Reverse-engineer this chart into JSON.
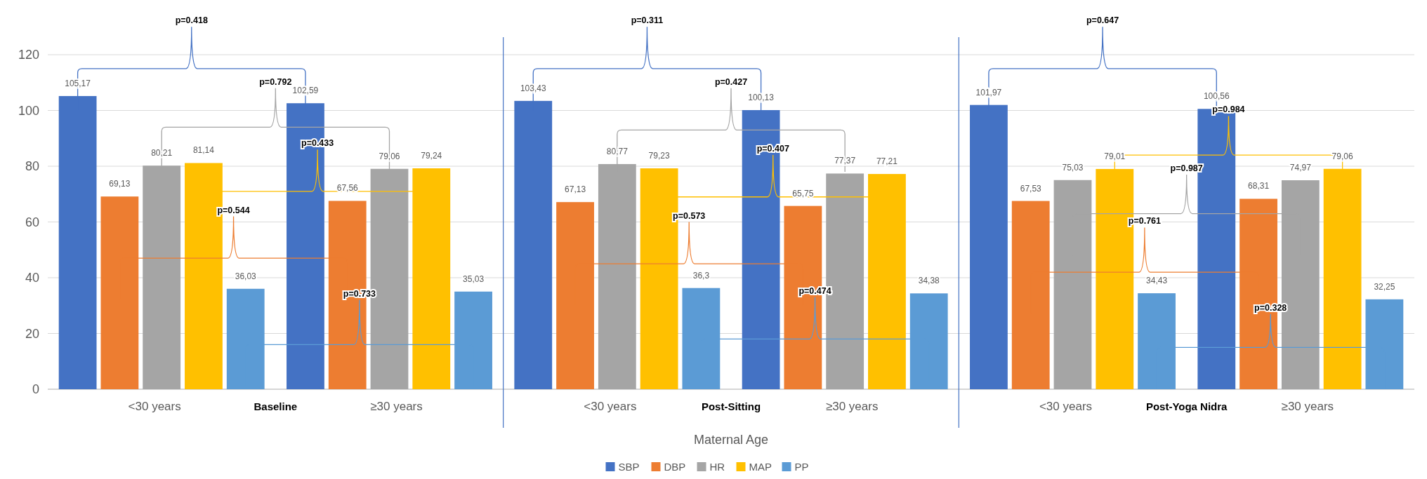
{
  "chart_data": {
    "type": "bar",
    "xlabel": "Maternal Age",
    "categories": [
      "<30 years",
      "≥30 years",
      "<30 years",
      "≥30 years",
      "<30 years",
      "≥30 years"
    ],
    "series": [
      {
        "name": "SBP",
        "color": "#4472c4",
        "values": [
          105.17,
          102.59,
          103.43,
          100.13,
          101.97,
          100.56
        ],
        "value_labels": [
          "105,17",
          "102,59",
          "103,43",
          "100,13",
          "101,97",
          "100,56"
        ]
      },
      {
        "name": "DBP",
        "color": "#ed7d31",
        "values": [
          69.13,
          67.56,
          67.13,
          65.75,
          67.53,
          68.31
        ],
        "value_labels": [
          "69,13",
          "67,56",
          "67,13",
          "65,75",
          "67,53",
          "68,31"
        ]
      },
      {
        "name": "HR",
        "color": "#a5a5a5",
        "values": [
          80.21,
          79.06,
          80.77,
          77.37,
          75.03,
          74.97
        ],
        "value_labels": [
          "80,21",
          "79,06",
          "80,77",
          "77,37",
          "75,03",
          "74,97"
        ]
      },
      {
        "name": "MAP",
        "color": "#ffc000",
        "values": [
          81.14,
          79.24,
          79.23,
          77.21,
          79.01,
          79.06
        ],
        "value_labels": [
          "81,14",
          "79,24",
          "79,23",
          "77,21",
          "79,01",
          "79,06"
        ]
      },
      {
        "name": "PP",
        "color": "#5b9bd5",
        "values": [
          36.03,
          35.03,
          36.3,
          34.38,
          34.43,
          32.25
        ],
        "value_labels": [
          "36,03",
          "35,03",
          "36,3",
          "34,38",
          "34,43",
          "32,25"
        ]
      }
    ],
    "ylim": [
      0,
      120
    ],
    "yticks": [
      0,
      20,
      40,
      60,
      80,
      100,
      120
    ],
    "grid": "y",
    "legend": "bottom",
    "annotations": [
      "Baseline",
      "Post-Sitting",
      "Post-Yoga Nidra",
      "p=0.418",
      "p=0.544",
      "p=0.792",
      "p=0.433",
      "p=0.733",
      "p=0.311",
      "p=0.573",
      "p=0.427",
      "p=0.407",
      "p=0.474",
      "p=0.647",
      "p=0.761",
      "p=0.987",
      "p=0.984",
      "p=0.328"
    ]
  }
}
